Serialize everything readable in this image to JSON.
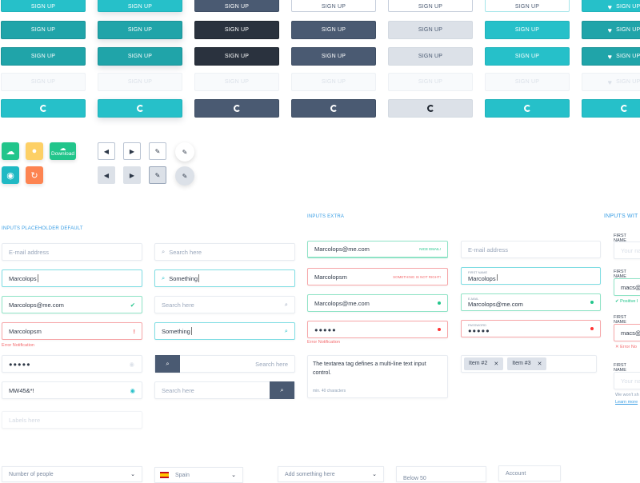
{
  "colors": {
    "teal": "#26c0c9",
    "teal_dark": "#20a4a9",
    "slate": "#4a5a72",
    "dark": "#2a323e",
    "gray": "#dce1e8",
    "success": "#22c58b",
    "error": "#f36a6d",
    "link": "#3a9ee4"
  },
  "buttons": {
    "label": "SIGN UP",
    "columns": [
      [
        "teal",
        "tealdk",
        "tealdk",
        "disabled",
        "teal-spin"
      ],
      [
        "teal shadow",
        "tealdk shadow",
        "tealdk shadow",
        "disabled",
        "teal-spin shadow"
      ],
      [
        "slate",
        "dark",
        "dark",
        "disabled",
        "slate-spin"
      ],
      [
        "outline",
        "slate",
        "slate",
        "disabled",
        "slate-spin"
      ],
      [
        "outline",
        "gray",
        "gray",
        "disabled",
        "gray-spin"
      ],
      [
        "outline-teal",
        "teal",
        "teal",
        "disabled",
        "teal-spin"
      ],
      [
        "teal heart",
        "tealdk heart",
        "tealdk heart",
        "disabled heart",
        "teal-spin"
      ]
    ]
  },
  "icon_buttons": {
    "download_label": "Download"
  },
  "sections": {
    "placeholder_default": "INPUTS  PLACEHOLDER DEFAULT",
    "extra": "INPUTS  EXTRA",
    "with_labels": "INPUTS  WIT"
  },
  "col_a": {
    "email_placeholder": "E-mail address",
    "typing": "Marcolops",
    "valid": "Marcolops@me.com",
    "invalid": "Marcolopsm",
    "error": "Error Notification",
    "password": "●●●●●",
    "password_shown": "MW45&*!",
    "labels_placeholder": "Labels here"
  },
  "col_b": {
    "search_placeholder": "Search here",
    "search_value": "Something"
  },
  "col_c": {
    "email": "Marcolops@me.com",
    "nice": "NICE EMAIL!",
    "invalid": "Marcolopsm",
    "not_right": "SOMETHING IS NOT RIGHT!",
    "valid": "Marcolops@me.com",
    "password": "●●●●●",
    "error": "Error Notification",
    "textarea": "The textarea tag defines a  multi-line text input control.",
    "textarea_hint": "min. 40 characters"
  },
  "col_d": {
    "email_placeholder": "E-mail address",
    "first_name_label": "FIRST NAME",
    "first_name": "Marcolops",
    "email_label": "E-MAIL",
    "email": "Marcolops@me.com",
    "password_label": "PASSWORD",
    "password": "●●●●●",
    "tags": [
      "Item #2",
      "Item #3"
    ]
  },
  "col_e": {
    "label": "FIRST NAME",
    "placeholder": "Your na",
    "value": "macs@g",
    "positive": "Positive I",
    "error": "Error No",
    "helper": "We won't sh",
    "learn_more": "Learn more"
  },
  "selects": {
    "people": "Number of people",
    "country": "Spain",
    "add": "Add something here",
    "below": "Below 50",
    "account": "Account"
  }
}
